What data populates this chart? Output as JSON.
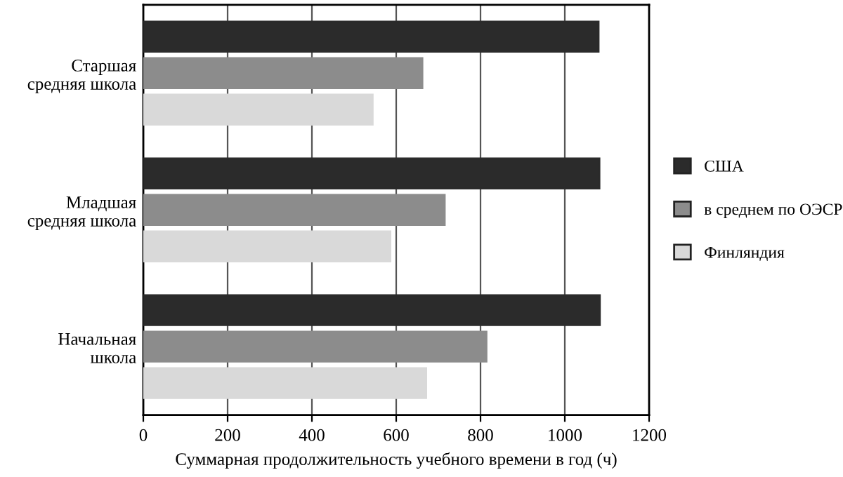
{
  "chart_data": {
    "type": "bar",
    "orientation": "horizontal",
    "xlabel": "Суммарная продолжительность учебного времени в год (ч)",
    "categories": [
      "Старшая\nсредняя школа",
      "Младшая\nсредняя школа",
      "Начальная\nшкола"
    ],
    "series": [
      {
        "name": "США",
        "color": "#2b2b2b",
        "values": [
          1080,
          1082,
          1083
        ]
      },
      {
        "name": "в среднем по ОЭСР",
        "color": "#8c8c8c",
        "values": [
          662,
          715,
          814
        ]
      },
      {
        "name": "Финляндия",
        "color": "#d9d9d9",
        "values": [
          544,
          586,
          671
        ]
      }
    ],
    "xlim": [
      0,
      1200
    ],
    "xticks": [
      0,
      200,
      400,
      600,
      800,
      1000,
      1200
    ],
    "grid": "x",
    "legend": "right"
  }
}
